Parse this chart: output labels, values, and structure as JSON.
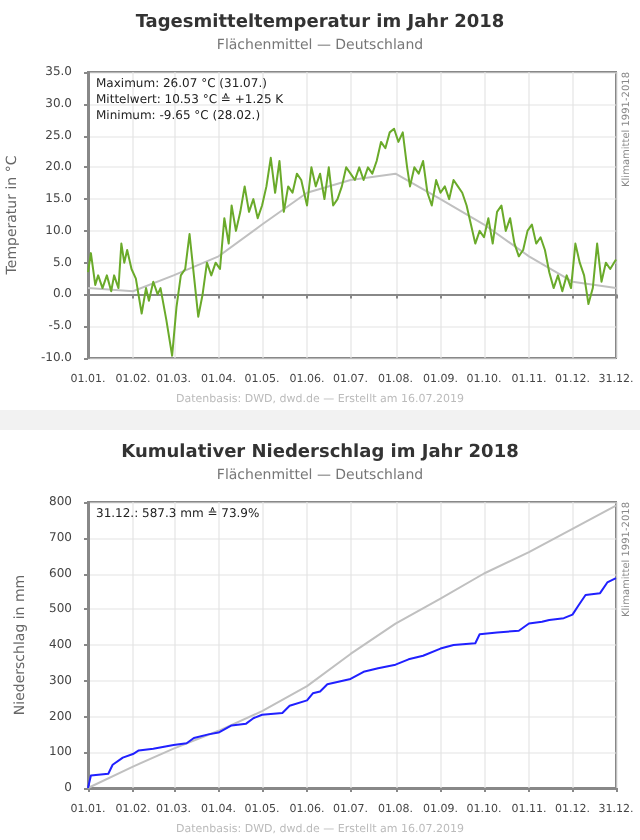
{
  "chart_data": [
    {
      "type": "line",
      "title": "Tagesmitteltemperatur im Jahr 2018",
      "subtitle": "Flächenmittel — Deutschland",
      "ylabel": "Temperatur in °C",
      "annotations": [
        "Maximum: 26.07 °C (31.07.)",
        "Mittelwert: 10.53 °C ≙ +1.25 K",
        "Minimum: -9.65 °C (28.02.)",
        "Klimamittel 1991-2018",
        "Datenbasis: DWD, dwd.de — Erstellt am 16.07.2019"
      ],
      "series": [
        {
          "color": "#c0c0c0",
          "x": [
            "2018-01-01",
            "2018-02-01",
            "2018-03-01",
            "2018-04-01",
            "2018-05-01",
            "2018-06-01",
            "2018-07-01",
            "2018-08-01",
            "2018-09-01",
            "2018-10-01",
            "2018-11-01",
            "2018-12-01",
            "2018-12-31"
          ],
          "values": [
            1,
            0.5,
            3,
            6,
            11,
            16,
            18,
            19,
            15,
            11,
            6,
            2,
            1
          ]
        },
        {
          "color": "#6aaa2a",
          "x": [
            "2018-01-01",
            "2018-01-03",
            "2018-01-06",
            "2018-01-08",
            "2018-01-11",
            "2018-01-14",
            "2018-01-17",
            "2018-01-19",
            "2018-01-22",
            "2018-01-24",
            "2018-01-26",
            "2018-01-28",
            "2018-01-31",
            "2018-02-03",
            "2018-02-07",
            "2018-02-10",
            "2018-02-12",
            "2018-02-15",
            "2018-02-18",
            "2018-02-20",
            "2018-02-24",
            "2018-02-28",
            "2018-03-03",
            "2018-03-06",
            "2018-03-09",
            "2018-03-12",
            "2018-03-15",
            "2018-03-18",
            "2018-03-21",
            "2018-03-24",
            "2018-03-27",
            "2018-03-30",
            "2018-04-02",
            "2018-04-05",
            "2018-04-08",
            "2018-04-10",
            "2018-04-13",
            "2018-04-16",
            "2018-04-19",
            "2018-04-22",
            "2018-04-25",
            "2018-04-28",
            "2018-05-01",
            "2018-05-04",
            "2018-05-07",
            "2018-05-10",
            "2018-05-13",
            "2018-05-16",
            "2018-05-19",
            "2018-05-22",
            "2018-05-25",
            "2018-05-28",
            "2018-06-01",
            "2018-06-04",
            "2018-06-07",
            "2018-06-10",
            "2018-06-13",
            "2018-06-16",
            "2018-06-19",
            "2018-06-22",
            "2018-06-25",
            "2018-06-28",
            "2018-07-01",
            "2018-07-04",
            "2018-07-07",
            "2018-07-10",
            "2018-07-13",
            "2018-07-16",
            "2018-07-19",
            "2018-07-22",
            "2018-07-25",
            "2018-07-28",
            "2018-07-31",
            "2018-08-03",
            "2018-08-06",
            "2018-08-09",
            "2018-08-11",
            "2018-08-14",
            "2018-08-17",
            "2018-08-20",
            "2018-08-23",
            "2018-08-26",
            "2018-08-29",
            "2018-09-01",
            "2018-09-04",
            "2018-09-07",
            "2018-09-10",
            "2018-09-13",
            "2018-09-16",
            "2018-09-19",
            "2018-09-22",
            "2018-09-25",
            "2018-09-28",
            "2018-10-01",
            "2018-10-04",
            "2018-10-07",
            "2018-10-10",
            "2018-10-13",
            "2018-10-16",
            "2018-10-19",
            "2018-10-22",
            "2018-10-25",
            "2018-10-28",
            "2018-10-31",
            "2018-11-03",
            "2018-11-06",
            "2018-11-09",
            "2018-11-12",
            "2018-11-15",
            "2018-11-18",
            "2018-11-21",
            "2018-11-24",
            "2018-11-27",
            "2018-11-30",
            "2018-12-03",
            "2018-12-06",
            "2018-12-09",
            "2018-12-12",
            "2018-12-15",
            "2018-12-18",
            "2018-12-21",
            "2018-12-24",
            "2018-12-27",
            "2018-12-31"
          ],
          "values": [
            3.5,
            6.5,
            1.5,
            3,
            1,
            3,
            0.5,
            3,
            1,
            8,
            5,
            7,
            4,
            2.5,
            -3,
            1,
            -1,
            2,
            0,
            1,
            -4,
            -9.65,
            -2,
            3,
            4,
            9.5,
            3,
            -3.5,
            0,
            5,
            3,
            5,
            4,
            12,
            8,
            14,
            10,
            13,
            17,
            13,
            15,
            12,
            14,
            17,
            21.5,
            16,
            21,
            13,
            17,
            16,
            19,
            18,
            14,
            20,
            17,
            19,
            15,
            20,
            14,
            15,
            17,
            20,
            19,
            18,
            20,
            18,
            20,
            19,
            21,
            24,
            23,
            25.5,
            26.07,
            24,
            25.5,
            20,
            17,
            20,
            19,
            21,
            16,
            14,
            18,
            16,
            17,
            15,
            18,
            17,
            16,
            14,
            11,
            8,
            10,
            9,
            12,
            8,
            13,
            14,
            10,
            12,
            8,
            6,
            7,
            10,
            11,
            8,
            9,
            7,
            3.5,
            1,
            3,
            0.5,
            3,
            1,
            8,
            5,
            3,
            -1.5,
            1,
            8,
            2,
            5,
            4,
            5.5
          ]
        }
      ],
      "xlim": [
        "2018-01-01",
        "2018-12-31"
      ],
      "xticks": [
        {
          "value": "2018-01-01",
          "label": "01.01."
        },
        {
          "value": "2018-02-01",
          "label": "01.02."
        },
        {
          "value": "2018-03-01",
          "label": "01.03."
        },
        {
          "value": "2018-04-01",
          "label": "01.04."
        },
        {
          "value": "2018-05-01",
          "label": "01.05."
        },
        {
          "value": "2018-06-01",
          "label": "01.06."
        },
        {
          "value": "2018-07-01",
          "label": "01.07."
        },
        {
          "value": "2018-08-01",
          "label": "01.08."
        },
        {
          "value": "2018-09-01",
          "label": "01.09."
        },
        {
          "value": "2018-10-01",
          "label": "01.10."
        },
        {
          "value": "2018-11-01",
          "label": "01.11."
        },
        {
          "value": "2018-12-01",
          "label": "01.12."
        },
        {
          "value": "2018-12-31",
          "label": "31.12."
        }
      ],
      "ylim": [
        -10,
        35
      ],
      "yticks": [
        {
          "value": -10,
          "label": "-10.0"
        },
        {
          "value": -5,
          "label": "-5.0"
        },
        {
          "value": 0,
          "label": "0.0"
        },
        {
          "value": 5,
          "label": "5.0"
        },
        {
          "value": 10,
          "label": "10.0"
        },
        {
          "value": 15,
          "label": "15.0"
        },
        {
          "value": 20,
          "label": "20.0"
        },
        {
          "value": 25,
          "label": "25.0"
        },
        {
          "value": 30,
          "label": "30.0"
        },
        {
          "value": 35,
          "label": "35.0"
        }
      ],
      "grid": true,
      "marker": "none",
      "line_style": "solid"
    },
    {
      "type": "line",
      "title": "Kumulativer Niederschlag im Jahr 2018",
      "subtitle": "Flächenmittel — Deutschland",
      "ylabel": "Niederschlag in mm",
      "annotations": [
        "31.12.: 587.3 mm ≙ 73.9%",
        "Klimamittel 1991-2018",
        "Datenbasis: DWD, dwd.de — Erstellt am 16.07.2019"
      ],
      "series": [
        {
          "color": "#c0c0c0",
          "x": [
            "2018-01-01",
            "2018-02-01",
            "2018-03-01",
            "2018-04-01",
            "2018-05-01",
            "2018-06-01",
            "2018-07-01",
            "2018-08-01",
            "2018-09-01",
            "2018-10-01",
            "2018-11-01",
            "2018-12-01",
            "2018-12-31"
          ],
          "values": [
            0,
            60,
            110,
            160,
            215,
            285,
            375,
            460,
            530,
            600,
            660,
            725,
            790
          ]
        },
        {
          "color": "#2020ff",
          "x": [
            "2018-01-01",
            "2018-01-03",
            "2018-01-15",
            "2018-01-18",
            "2018-01-25",
            "2018-02-01",
            "2018-02-05",
            "2018-02-15",
            "2018-03-01",
            "2018-03-10",
            "2018-03-15",
            "2018-03-25",
            "2018-04-01",
            "2018-04-10",
            "2018-04-20",
            "2018-04-25",
            "2018-05-01",
            "2018-05-15",
            "2018-05-20",
            "2018-06-01",
            "2018-06-05",
            "2018-06-10",
            "2018-06-15",
            "2018-07-01",
            "2018-07-10",
            "2018-07-20",
            "2018-08-01",
            "2018-08-10",
            "2018-08-20",
            "2018-09-01",
            "2018-09-10",
            "2018-09-25",
            "2018-09-28",
            "2018-10-10",
            "2018-10-25",
            "2018-11-01",
            "2018-11-10",
            "2018-11-15",
            "2018-11-25",
            "2018-12-01",
            "2018-12-05",
            "2018-12-10",
            "2018-12-20",
            "2018-12-25",
            "2018-12-31"
          ],
          "values": [
            0,
            35,
            40,
            65,
            85,
            95,
            105,
            110,
            120,
            125,
            140,
            150,
            155,
            175,
            180,
            195,
            205,
            210,
            230,
            245,
            265,
            270,
            290,
            305,
            325,
            335,
            345,
            360,
            370,
            390,
            400,
            405,
            430,
            435,
            440,
            460,
            465,
            470,
            475,
            485,
            510,
            540,
            545,
            575,
            587.3
          ]
        }
      ],
      "xlim": [
        "2018-01-01",
        "2018-12-31"
      ],
      "xticks": [
        {
          "value": "2018-01-01",
          "label": "01.01."
        },
        {
          "value": "2018-02-01",
          "label": "01.02."
        },
        {
          "value": "2018-03-01",
          "label": "01.03."
        },
        {
          "value": "2018-04-01",
          "label": "01.04."
        },
        {
          "value": "2018-05-01",
          "label": "01.05."
        },
        {
          "value": "2018-06-01",
          "label": "01.06."
        },
        {
          "value": "2018-07-01",
          "label": "01.07."
        },
        {
          "value": "2018-08-01",
          "label": "01.08."
        },
        {
          "value": "2018-09-01",
          "label": "01.09."
        },
        {
          "value": "2018-10-01",
          "label": "01.10."
        },
        {
          "value": "2018-11-01",
          "label": "01.11."
        },
        {
          "value": "2018-12-01",
          "label": "01.12."
        },
        {
          "value": "2018-12-31",
          "label": "31.12."
        }
      ],
      "ylim": [
        0,
        800
      ],
      "yticks": [
        0,
        100,
        200,
        300,
        400,
        500,
        600,
        700,
        800
      ],
      "grid": true,
      "marker": "none",
      "line_style": "solid"
    }
  ]
}
